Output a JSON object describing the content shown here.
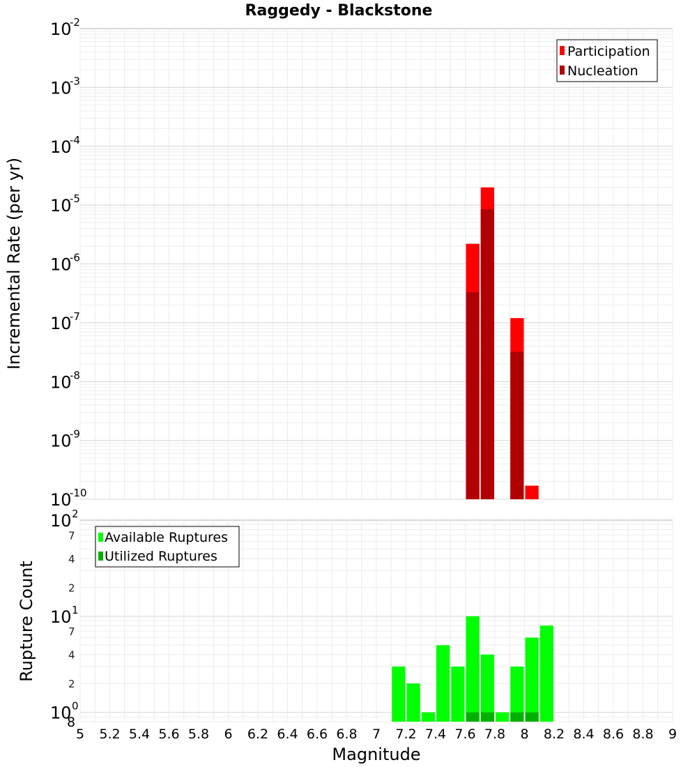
{
  "chart_data": [
    {
      "type": "bar",
      "title": "Raggedy - Blackstone",
      "ylabel": "Incremental Rate (per yr)",
      "xlabel": "",
      "yscale": "log",
      "ylim": [
        1e-10,
        0.01
      ],
      "xlim": [
        5,
        9
      ],
      "grid": true,
      "legend_position": "top-right",
      "y_tick_labels": [
        {
          "base": "10",
          "exp": "-10"
        },
        {
          "base": "10",
          "exp": "-9"
        },
        {
          "base": "10",
          "exp": "-8"
        },
        {
          "base": "10",
          "exp": "-7"
        },
        {
          "base": "10",
          "exp": "-6"
        },
        {
          "base": "10",
          "exp": "-5"
        },
        {
          "base": "10",
          "exp": "-4"
        },
        {
          "base": "10",
          "exp": "-3"
        },
        {
          "base": "10",
          "exp": "-2"
        }
      ],
      "bin_width": 0.1,
      "series": [
        {
          "name": "Participation",
          "color": "#ff0000",
          "x": [
            7.65,
            7.75,
            7.95,
            8.05
          ],
          "values": [
            2.2e-06,
            2e-05,
            1.2e-07,
            1.7e-10
          ]
        },
        {
          "name": "Nucleation",
          "color": "#b00000",
          "x": [
            7.65,
            7.75,
            7.95
          ],
          "values": [
            3.3e-07,
            8.5e-06,
            3.2e-08
          ]
        }
      ]
    },
    {
      "type": "bar",
      "title": "",
      "ylabel": "Rupture Count",
      "xlabel": "Magnitude",
      "yscale": "log",
      "ylim": [
        0.8,
        100
      ],
      "xlim": [
        5,
        9
      ],
      "grid": true,
      "legend_position": "top-left",
      "y_major_labels": [
        {
          "value": 1,
          "base": "10",
          "exp": "0"
        },
        {
          "value": 10,
          "base": "10",
          "exp": "1"
        },
        {
          "value": 100,
          "base": "10",
          "exp": "2"
        }
      ],
      "y_minor_labels": [
        "2",
        "4",
        "7",
        "2",
        "4",
        "7",
        "8"
      ],
      "x_ticks": [
        "5",
        "5.2",
        "5.4",
        "5.6",
        "5.8",
        "6",
        "6.2",
        "6.4",
        "6.6",
        "6.8",
        "7",
        "7.2",
        "7.4",
        "7.6",
        "7.8",
        "8",
        "8.2",
        "8.4",
        "8.6",
        "8.8",
        "9"
      ],
      "bin_width": 0.1,
      "series": [
        {
          "name": "Available Ruptures",
          "color": "#00ff00",
          "x": [
            7.15,
            7.25,
            7.35,
            7.45,
            7.55,
            7.65,
            7.75,
            7.85,
            7.95,
            8.05,
            8.15
          ],
          "values": [
            3,
            2,
            1,
            5,
            3,
            10,
            4,
            1,
            3,
            6,
            8
          ]
        },
        {
          "name": "Utilized Ruptures",
          "color": "#00b000",
          "x": [
            7.65,
            7.75,
            7.95,
            8.05
          ],
          "values": [
            1,
            1,
            1,
            1
          ]
        }
      ]
    }
  ]
}
